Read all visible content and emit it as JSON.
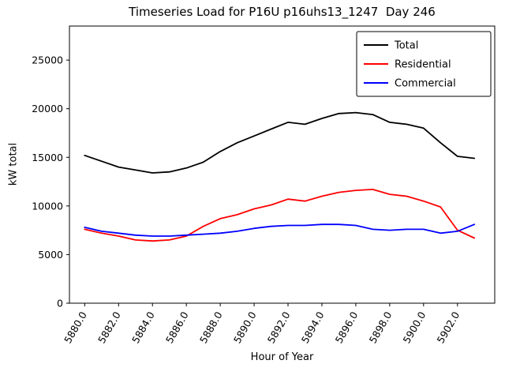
{
  "chart_data": {
    "type": "line",
    "title": "Timeseries Load for P16U p16uhs13_1247  Day 246",
    "xlabel": "Hour of Year",
    "ylabel": "kW total",
    "xlim": [
      5879.1,
      5904.2
    ],
    "ylim": [
      0,
      28500
    ],
    "grid": false,
    "legend_position": "upper right",
    "axis_color": "#000000",
    "background_color": "#ffffff",
    "xticks": [
      {
        "value": 5880,
        "label": "5880.0"
      },
      {
        "value": 5882,
        "label": "5882.0"
      },
      {
        "value": 5884,
        "label": "5884.0"
      },
      {
        "value": 5886,
        "label": "5886.0"
      },
      {
        "value": 5888,
        "label": "5888.0"
      },
      {
        "value": 5890,
        "label": "5890.0"
      },
      {
        "value": 5892,
        "label": "5892.0"
      },
      {
        "value": 5894,
        "label": "5894.0"
      },
      {
        "value": 5896,
        "label": "5896.0"
      },
      {
        "value": 5898,
        "label": "5898.0"
      },
      {
        "value": 5900,
        "label": "5900.0"
      },
      {
        "value": 5902,
        "label": "5902.0"
      }
    ],
    "yticks": [
      {
        "value": 0,
        "label": "0"
      },
      {
        "value": 5000,
        "label": "5000"
      },
      {
        "value": 10000,
        "label": "10000"
      },
      {
        "value": 15000,
        "label": "15000"
      },
      {
        "value": 20000,
        "label": "20000"
      },
      {
        "value": 25000,
        "label": "25000"
      }
    ],
    "x": [
      5880,
      5881,
      5882,
      5883,
      5884,
      5885,
      5886,
      5887,
      5888,
      5889,
      5890,
      5891,
      5892,
      5893,
      5894,
      5895,
      5896,
      5897,
      5898,
      5899,
      5900,
      5901,
      5902,
      5903
    ],
    "series": [
      {
        "name": "Total",
        "color": "#000000",
        "values": [
          15200,
          14600,
          14000,
          13700,
          13400,
          13500,
          13900,
          14500,
          15600,
          16500,
          17200,
          17900,
          18600,
          18400,
          19000,
          19500,
          19600,
          19400,
          18600,
          18400,
          18000,
          16500,
          15100,
          14900
        ]
      },
      {
        "name": "Residential",
        "color": "#ff0000",
        "values": [
          7600,
          7200,
          6900,
          6500,
          6400,
          6500,
          6900,
          7900,
          8700,
          9100,
          9700,
          10100,
          10700,
          10500,
          11000,
          11400,
          11600,
          11700,
          11200,
          11000,
          10500,
          9900,
          7500,
          6700
        ]
      },
      {
        "name": "Commercial",
        "color": "#0000ff",
        "values": [
          7800,
          7400,
          7200,
          7000,
          6900,
          6900,
          7000,
          7100,
          7200,
          7400,
          7700,
          7900,
          8000,
          8000,
          8100,
          8100,
          8000,
          7600,
          7500,
          7600,
          7600,
          7200,
          7400,
          8100
        ]
      }
    ]
  }
}
